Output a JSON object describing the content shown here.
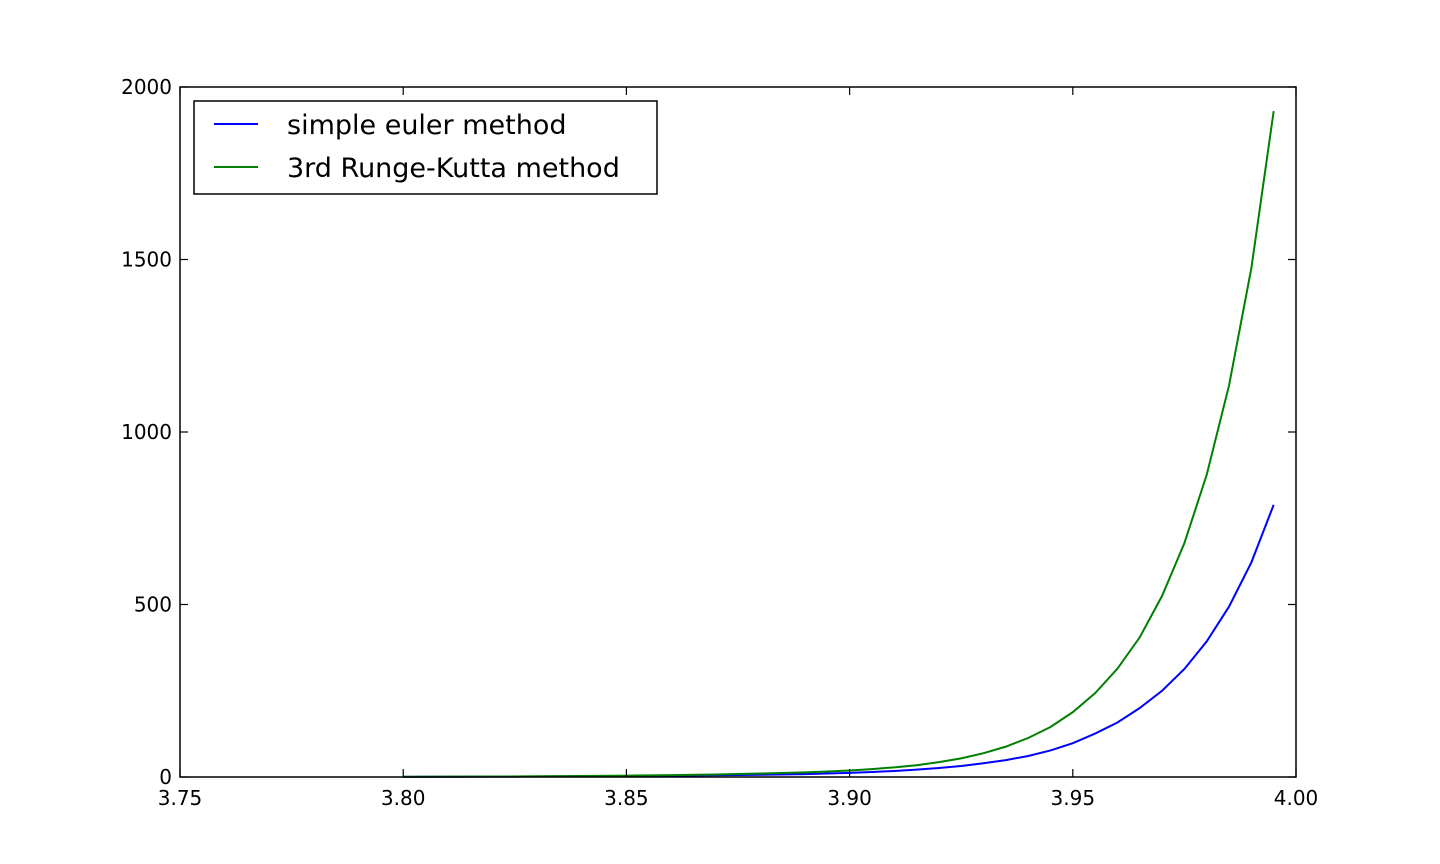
{
  "chart_data": {
    "type": "line",
    "title": "",
    "xlabel": "",
    "ylabel": "",
    "xlim": [
      3.75,
      4.0
    ],
    "ylim": [
      0,
      2000
    ],
    "xticks": [
      3.75,
      3.8,
      3.85,
      3.9,
      3.95,
      4.0
    ],
    "xtick_labels": [
      "3.75",
      "3.80",
      "3.85",
      "3.90",
      "3.95",
      "4.00"
    ],
    "yticks": [
      0,
      500,
      1000,
      1500,
      2000
    ],
    "ytick_labels": [
      "0",
      "500",
      "1000",
      "1500",
      "2000"
    ],
    "grid": false,
    "legend_position": "top-left",
    "series": [
      {
        "name": "simple euler method",
        "color": "#0000ff",
        "x": [
          3.8,
          3.81,
          3.82,
          3.83,
          3.84,
          3.85,
          3.86,
          3.87,
          3.88,
          3.89,
          3.895,
          3.9,
          3.905,
          3.91,
          3.915,
          3.92,
          3.925,
          3.93,
          3.935,
          3.94,
          3.945,
          3.95,
          3.955,
          3.96,
          3.965,
          3.97,
          3.975,
          3.98,
          3.985,
          3.99,
          3.995
        ],
        "y": [
          0.5,
          0.7,
          1.0,
          1.4,
          2.0,
          2.7,
          3.6,
          5.0,
          6.5,
          8.5,
          10,
          12,
          14.5,
          17.5,
          21.5,
          26,
          32,
          40,
          49,
          61,
          77,
          98,
          126,
          158,
          200,
          250,
          313,
          393,
          494,
          622,
          789
        ]
      },
      {
        "name": "3rd Runge-Kutta method",
        "color": "#008000",
        "x": [
          3.8,
          3.81,
          3.82,
          3.83,
          3.84,
          3.85,
          3.86,
          3.87,
          3.88,
          3.89,
          3.895,
          3.9,
          3.905,
          3.91,
          3.915,
          3.92,
          3.925,
          3.93,
          3.935,
          3.94,
          3.945,
          3.95,
          3.955,
          3.96,
          3.965,
          3.97,
          3.975,
          3.98,
          3.985,
          3.99,
          3.995
        ],
        "y": [
          0.7,
          1.0,
          1.4,
          2.0,
          2.8,
          3.9,
          5.3,
          7.3,
          10,
          13.5,
          16,
          19,
          23,
          28,
          34,
          43,
          54,
          69,
          88,
          113,
          145,
          188,
          243,
          314,
          405,
          525,
          678,
          876,
          1135,
          1475,
          1930
        ]
      }
    ]
  }
}
